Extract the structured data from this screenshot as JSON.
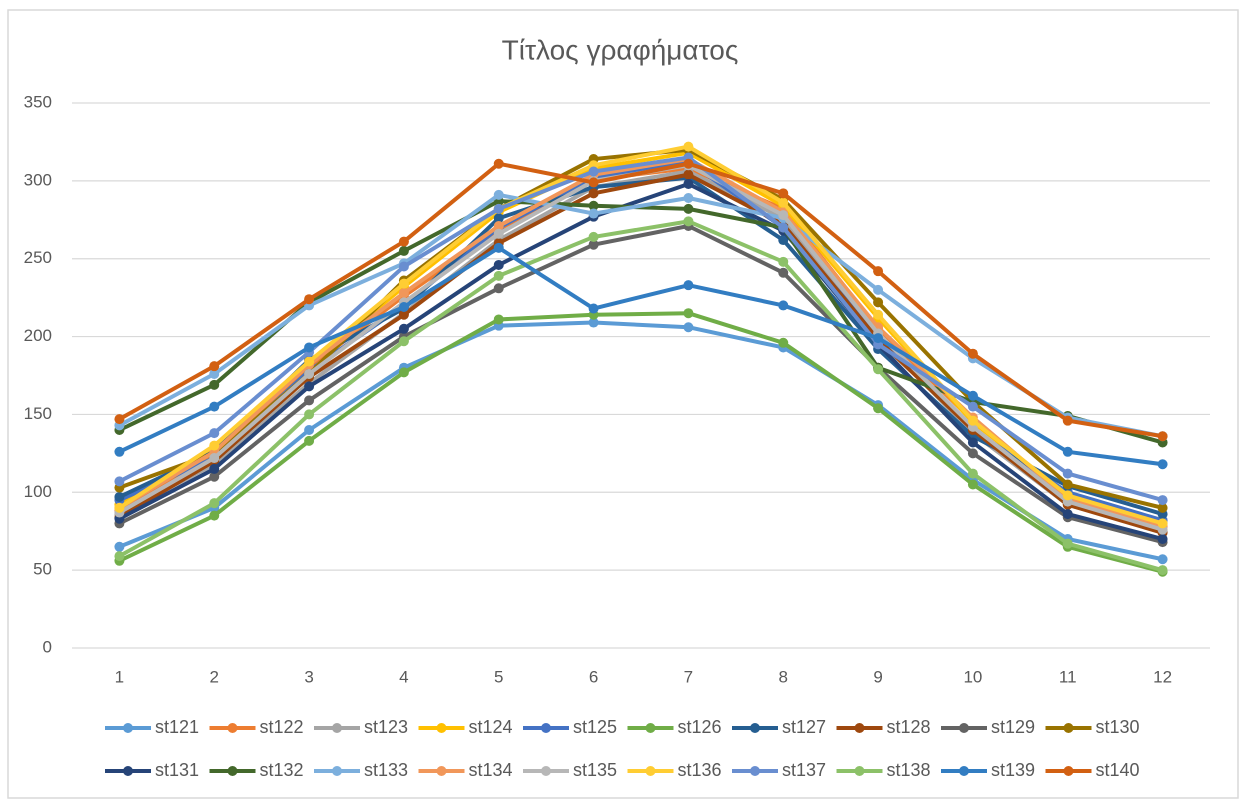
{
  "chart_data": {
    "type": "line",
    "title": "Τίτλος γραφήματος",
    "categories": [
      1,
      2,
      3,
      4,
      5,
      6,
      7,
      8,
      9,
      10,
      11,
      12
    ],
    "ylim": [
      0,
      350
    ],
    "yticks": [
      0,
      50,
      100,
      150,
      200,
      250,
      300,
      350
    ],
    "grid": true,
    "legend": "bottom",
    "series": [
      {
        "name": "st121",
        "color": "#5b9bd5",
        "values": [
          65,
          90,
          140,
          180,
          207,
          209,
          206,
          193,
          156,
          108,
          70,
          57
        ]
      },
      {
        "name": "st122",
        "color": "#ed7d31",
        "values": [
          88,
          124,
          180,
          226,
          268,
          301,
          308,
          282,
          205,
          146,
          95,
          78
        ]
      },
      {
        "name": "st123",
        "color": "#a5a5a5",
        "values": [
          86,
          118,
          170,
          215,
          262,
          296,
          306,
          276,
          200,
          138,
          92,
          75
        ]
      },
      {
        "name": "st124",
        "color": "#ffc000",
        "values": [
          92,
          128,
          182,
          232,
          280,
          308,
          318,
          284,
          212,
          145,
          98,
          80
        ]
      },
      {
        "name": "st125",
        "color": "#4472c4",
        "values": [
          95,
          122,
          178,
          220,
          270,
          302,
          312,
          270,
          200,
          140,
          100,
          82
        ]
      },
      {
        "name": "st126",
        "color": "#70ad47",
        "values": [
          56,
          85,
          133,
          177,
          211,
          214,
          215,
          196,
          154,
          105,
          65,
          49
        ]
      },
      {
        "name": "st127",
        "color": "#255e91",
        "values": [
          97,
          126,
          185,
          218,
          276,
          296,
          302,
          262,
          192,
          136,
          104,
          86
        ]
      },
      {
        "name": "st128",
        "color": "#9e480e",
        "values": [
          84,
          120,
          174,
          214,
          260,
          292,
          304,
          272,
          198,
          140,
          92,
          74
        ]
      },
      {
        "name": "st129",
        "color": "#636363",
        "values": [
          80,
          110,
          159,
          200,
          231,
          259,
          271,
          241,
          180,
          125,
          84,
          68
        ]
      },
      {
        "name": "st130",
        "color": "#997300",
        "values": [
          103,
          125,
          176,
          236,
          282,
          314,
          320,
          288,
          222,
          158,
          105,
          90
        ]
      },
      {
        "name": "st131",
        "color": "#264478",
        "values": [
          83,
          115,
          168,
          205,
          246,
          277,
          298,
          268,
          195,
          132,
          86,
          70
        ]
      },
      {
        "name": "st132",
        "color": "#43682b",
        "values": [
          140,
          169,
          222,
          255,
          287,
          284,
          282,
          270,
          180,
          158,
          149,
          132
        ]
      },
      {
        "name": "st133",
        "color": "#7cafdd",
        "values": [
          143,
          176,
          220,
          247,
          291,
          279,
          289,
          276,
          230,
          186,
          148,
          136
        ]
      },
      {
        "name": "st134",
        "color": "#f1975a",
        "values": [
          90,
          126,
          182,
          228,
          271,
          304,
          314,
          280,
          206,
          148,
          96,
          78
        ]
      },
      {
        "name": "st135",
        "color": "#b7b7b7",
        "values": [
          87,
          122,
          176,
          222,
          266,
          300,
          310,
          278,
          202,
          142,
          94,
          76
        ]
      },
      {
        "name": "st136",
        "color": "#ffcd33",
        "values": [
          90,
          130,
          184,
          234,
          282,
          310,
          322,
          286,
          214,
          146,
          98,
          80
        ]
      },
      {
        "name": "st137",
        "color": "#698ed0",
        "values": [
          107,
          138,
          190,
          245,
          282,
          306,
          315,
          270,
          195,
          155,
          112,
          95
        ]
      },
      {
        "name": "st138",
        "color": "#8cc168",
        "values": [
          59,
          93,
          150,
          197,
          239,
          264,
          274,
          248,
          179,
          112,
          67,
          50
        ]
      },
      {
        "name": "st139",
        "color": "#327dc2",
        "values": [
          126,
          155,
          193,
          219,
          257,
          218,
          233,
          220,
          199,
          162,
          126,
          118
        ]
      },
      {
        "name": "st140",
        "color": "#d26012",
        "values": [
          147,
          181,
          224,
          261,
          311,
          299,
          311,
          292,
          242,
          189,
          146,
          136
        ]
      }
    ]
  }
}
